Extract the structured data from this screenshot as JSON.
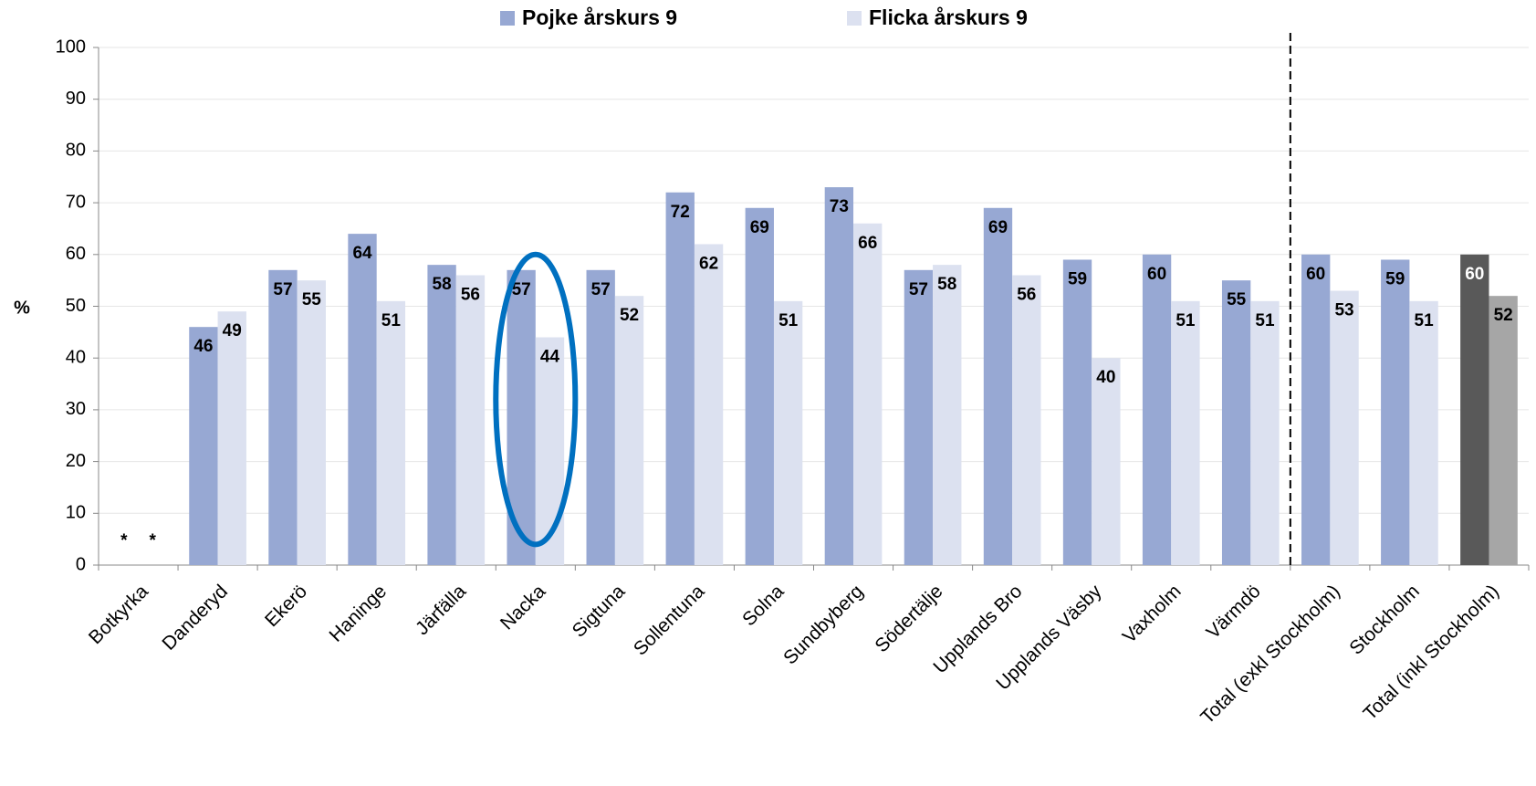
{
  "chart_data": {
    "type": "bar",
    "categories": [
      "Botkyrka",
      "Danderyd",
      "Ekerö",
      "Haninge",
      "Järfälla",
      "Nacka",
      "Sigtuna",
      "Sollentuna",
      "Solna",
      "Sundbyberg",
      "Södertälje",
      "Upplands Bro",
      "Upplands Väsby",
      "Vaxholm",
      "Värmdö",
      "Total (exkl Stockholm)",
      "Stockholm",
      "Total (inkl Stockholm)"
    ],
    "series": [
      {
        "name": "Pojke årskurs 9",
        "color": "#97a8d3",
        "colors": [
          "#97a8d3",
          "#97a8d3",
          "#97a8d3",
          "#97a8d3",
          "#97a8d3",
          "#97a8d3",
          "#97a8d3",
          "#97a8d3",
          "#97a8d3",
          "#97a8d3",
          "#97a8d3",
          "#97a8d3",
          "#97a8d3",
          "#97a8d3",
          "#97a8d3",
          "#97a8d3",
          "#97a8d3",
          "#595959"
        ],
        "values": [
          null,
          46,
          57,
          64,
          58,
          57,
          57,
          72,
          69,
          73,
          57,
          69,
          59,
          60,
          55,
          60,
          59,
          60
        ],
        "value_labels": [
          "*",
          null,
          null,
          null,
          null,
          null,
          null,
          null,
          null,
          null,
          null,
          null,
          null,
          null,
          null,
          null,
          null,
          null
        ]
      },
      {
        "name": "Flicka årskurs 9",
        "color": "#dce1f0",
        "colors": [
          "#dce1f0",
          "#dce1f0",
          "#dce1f0",
          "#dce1f0",
          "#dce1f0",
          "#dce1f0",
          "#dce1f0",
          "#dce1f0",
          "#dce1f0",
          "#dce1f0",
          "#dce1f0",
          "#dce1f0",
          "#dce1f0",
          "#dce1f0",
          "#dce1f0",
          "#dce1f0",
          "#dce1f0",
          "#a6a6a6"
        ],
        "values": [
          null,
          49,
          55,
          51,
          56,
          44,
          52,
          62,
          51,
          66,
          58,
          56,
          40,
          51,
          51,
          53,
          51,
          52
        ],
        "value_labels": [
          "*",
          null,
          null,
          null,
          null,
          null,
          null,
          null,
          null,
          null,
          null,
          null,
          null,
          null,
          null,
          null,
          null,
          null
        ]
      }
    ],
    "y_label": "%",
    "ylim": [
      0,
      100
    ],
    "yticks": [
      0,
      10,
      20,
      30,
      40,
      50,
      60,
      70,
      80,
      90,
      100
    ],
    "grid": true,
    "legend": "top",
    "separator_after": "Värmdö",
    "highlight": "Nacka"
  }
}
